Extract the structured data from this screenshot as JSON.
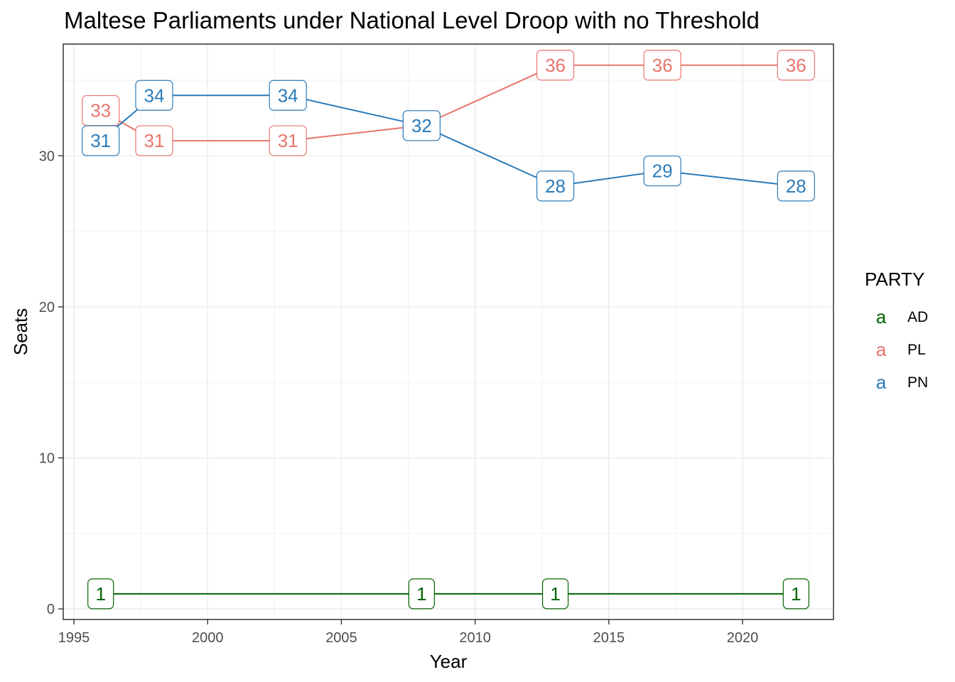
{
  "chart_data": {
    "type": "line",
    "title": "Maltese Parliaments under National Level Droop with no Threshold",
    "xlabel": "Year",
    "ylabel": "Seats",
    "xlim": [
      1994.6,
      2023.4
    ],
    "ylim": [
      -0.7,
      37.4
    ],
    "x_ticks": [
      1995,
      2000,
      2005,
      2010,
      2015,
      2020
    ],
    "y_ticks": [
      0,
      10,
      20,
      30
    ],
    "grid": true,
    "legend": {
      "title": "PARTY",
      "position": "right",
      "key_glyph": "a"
    },
    "series": [
      {
        "name": "AD",
        "color": "#006400",
        "points": [
          {
            "x": 1996,
            "y": 1
          },
          {
            "x": 2008,
            "y": 1
          },
          {
            "x": 2013,
            "y": 1
          },
          {
            "x": 2022,
            "y": 1
          }
        ]
      },
      {
        "name": "PL",
        "color": "#E8756C",
        "points": [
          {
            "x": 1996,
            "y": 33
          },
          {
            "x": 1998,
            "y": 31
          },
          {
            "x": 2003,
            "y": 31
          },
          {
            "x": 2008,
            "y": 32
          },
          {
            "x": 2013,
            "y": 36
          },
          {
            "x": 2017,
            "y": 36
          },
          {
            "x": 2022,
            "y": 36
          }
        ]
      },
      {
        "name": "PN",
        "color": "#2B7BB9",
        "points": [
          {
            "x": 1996,
            "y": 31
          },
          {
            "x": 1998,
            "y": 34
          },
          {
            "x": 2003,
            "y": 34
          },
          {
            "x": 2008,
            "y": 32
          },
          {
            "x": 2013,
            "y": 28
          },
          {
            "x": 2017,
            "y": 29
          },
          {
            "x": 2022,
            "y": 28
          }
        ]
      }
    ]
  }
}
